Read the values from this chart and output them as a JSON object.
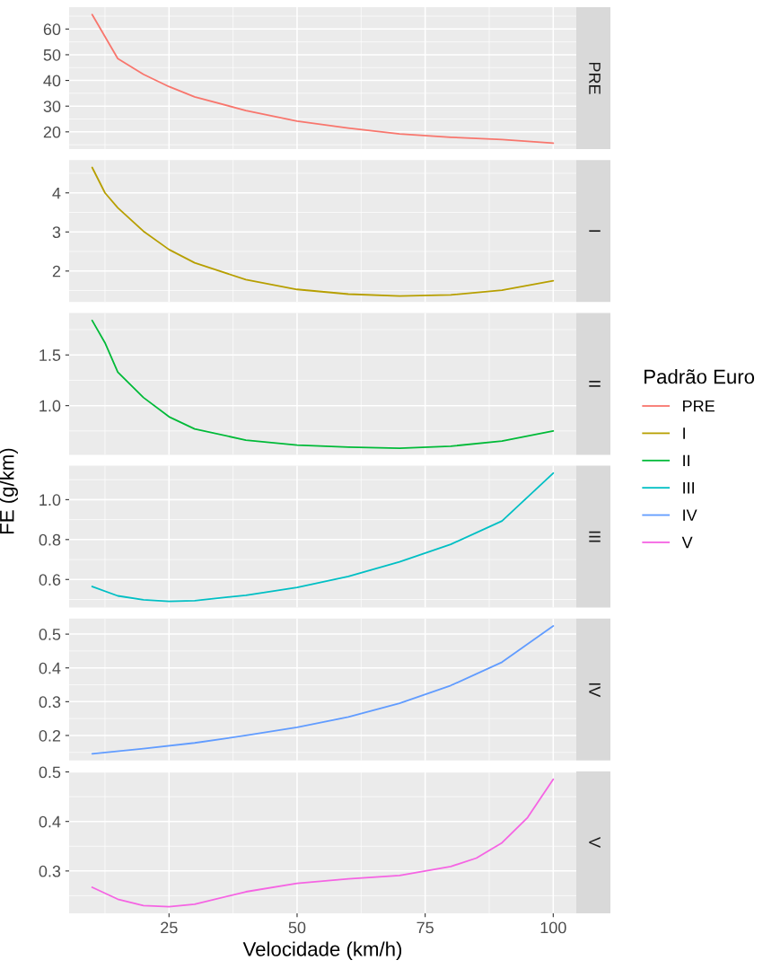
{
  "chart_data": [
    {
      "type": "line",
      "legend_title": "Padrão Euro",
      "legend": "right",
      "grid": true,
      "tick_labels": "y",
      "xlim": [
        5.5,
        104.5
      ],
      "xticks": [
        25,
        50,
        75,
        100
      ],
      "ylim": [
        13.3,
        68.5
      ],
      "yticks": [
        20,
        30,
        40,
        50,
        60
      ],
      "series": [
        {
          "name": "PRE",
          "color": "#f8766d",
          "x": [
            10,
            15,
            20,
            25,
            30,
            40,
            50,
            60,
            70,
            80,
            90,
            100
          ],
          "values": [
            65.6,
            48.5,
            42.4,
            37.6,
            33.6,
            28.3,
            24.2,
            21.5,
            19.2,
            17.9,
            17.0,
            15.6
          ]
        }
      ]
    },
    {
      "type": "line",
      "grid": true,
      "tick_labels": "y",
      "xlim": [
        5.5,
        104.5
      ],
      "xticks": [
        25,
        50,
        75,
        100
      ],
      "ylim": [
        1.21,
        4.84
      ],
      "yticks": [
        2,
        3,
        4
      ],
      "series": [
        {
          "name": "I",
          "color": "#b79f00",
          "x": [
            10,
            12.5,
            15,
            20,
            25,
            30,
            40,
            50,
            60,
            70,
            80,
            90,
            100
          ],
          "values": [
            4.65,
            4.0,
            3.62,
            3.02,
            2.55,
            2.21,
            1.78,
            1.53,
            1.41,
            1.36,
            1.39,
            1.51,
            1.75
          ]
        }
      ]
    },
    {
      "type": "line",
      "grid": true,
      "tick_labels": "y",
      "xlim": [
        5.5,
        104.5
      ],
      "xticks": [
        25,
        50,
        75,
        100
      ],
      "ylim": [
        0.515,
        1.915
      ],
      "yticks": [
        {
          "value": 1.0,
          "label": "1.0"
        },
        1.5
      ],
      "series": [
        {
          "name": "II",
          "color": "#00ba38",
          "x": [
            10,
            12.5,
            15,
            20,
            25,
            30,
            40,
            50,
            60,
            70,
            80,
            90,
            100
          ],
          "values": [
            1.84,
            1.62,
            1.33,
            1.08,
            0.89,
            0.77,
            0.66,
            0.61,
            0.59,
            0.58,
            0.6,
            0.65,
            0.75
          ]
        }
      ]
    },
    {
      "type": "line",
      "ylabel": "FE (g/km)",
      "grid": true,
      "tick_labels": "y",
      "xlim": [
        5.5,
        104.5
      ],
      "xticks": [
        25,
        50,
        75,
        100
      ],
      "ylim": [
        0.459,
        1.17
      ],
      "yticks": [
        0.6,
        0.8,
        {
          "value": 1.0,
          "label": "1.0"
        }
      ],
      "series": [
        {
          "name": "III",
          "color": "#00bfc4",
          "x": [
            10,
            15,
            20,
            25,
            30,
            40,
            50,
            60,
            70,
            80,
            90,
            100
          ],
          "values": [
            0.565,
            0.518,
            0.498,
            0.49,
            0.494,
            0.521,
            0.56,
            0.615,
            0.688,
            0.776,
            0.893,
            1.133
          ]
        }
      ]
    },
    {
      "type": "line",
      "grid": true,
      "tick_labels": "y",
      "xlim": [
        5.5,
        104.5
      ],
      "xticks": [
        25,
        50,
        75,
        100
      ],
      "ylim": [
        0.126,
        0.546
      ],
      "yticks": [
        0.2,
        0.3,
        0.4,
        0.5
      ],
      "series": [
        {
          "name": "IV",
          "color": "#619cff",
          "x": [
            10,
            20,
            30,
            40,
            50,
            60,
            70,
            80,
            90,
            100
          ],
          "values": [
            0.146,
            0.161,
            0.178,
            0.2,
            0.224,
            0.255,
            0.295,
            0.348,
            0.417,
            0.524
          ]
        }
      ]
    },
    {
      "type": "line",
      "xlabel": "Velocidade (km/h)",
      "grid": true,
      "xlim": [
        5.5,
        104.5
      ],
      "xticks": [
        25,
        50,
        75,
        100
      ],
      "ylim": [
        0.2145,
        0.501
      ],
      "yticks": [
        0.3,
        0.4,
        0.5
      ],
      "series": [
        {
          "name": "V",
          "color": "#f564e3",
          "x": [
            10,
            15,
            20,
            25,
            30,
            40,
            50,
            60,
            70,
            75,
            80,
            85,
            90,
            95,
            100
          ],
          "values": [
            0.267,
            0.243,
            0.23,
            0.228,
            0.233,
            0.258,
            0.275,
            0.284,
            0.291,
            0.3,
            0.309,
            0.326,
            0.357,
            0.408,
            0.485
          ]
        }
      ]
    }
  ]
}
